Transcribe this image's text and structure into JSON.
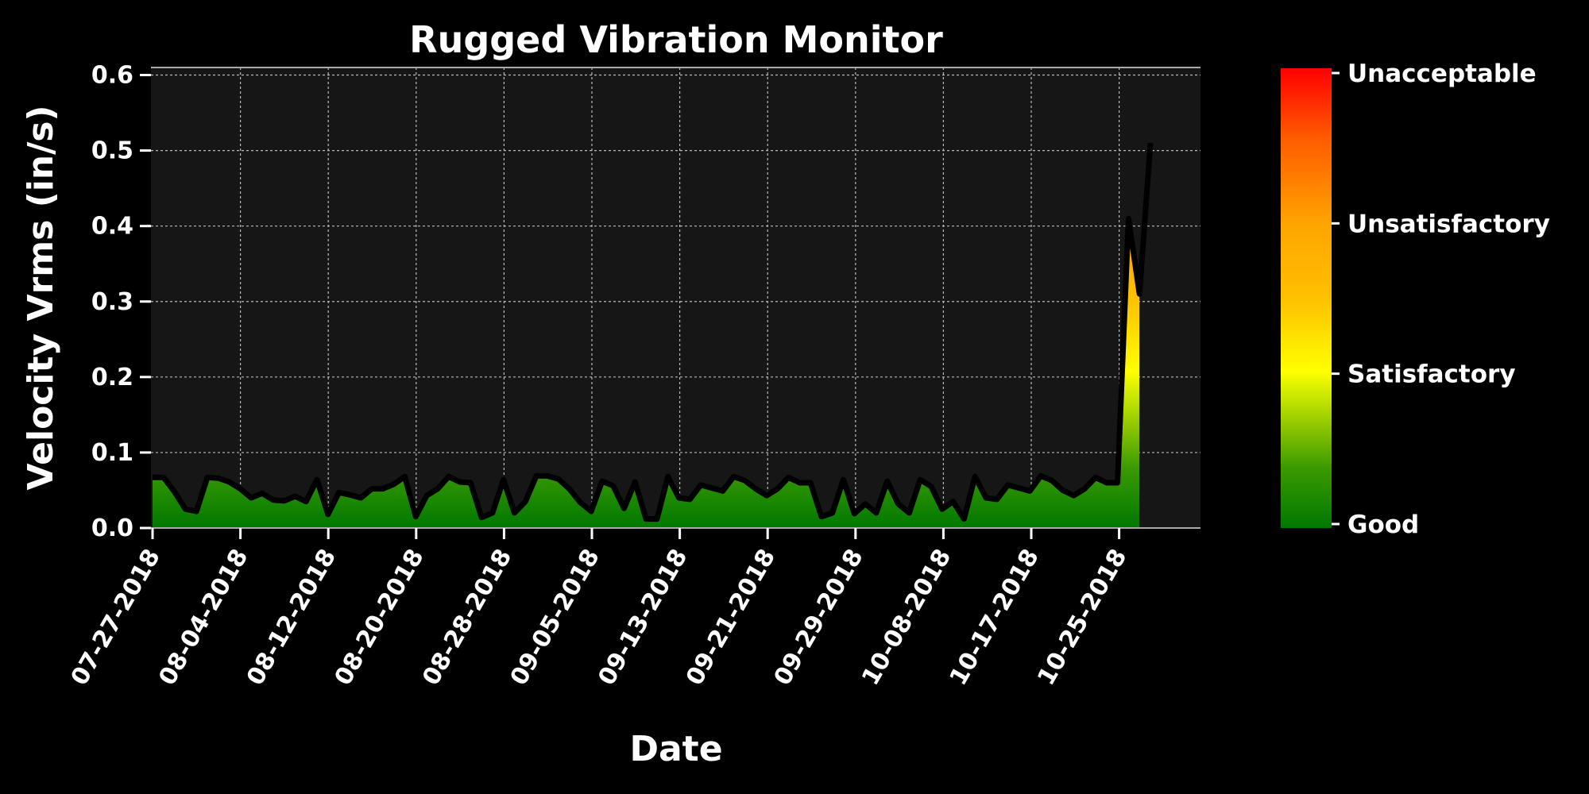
{
  "chart_data": {
    "type": "area",
    "title": "Rugged Vibration Monitor",
    "xlabel": "Date",
    "ylabel": "Velocity Vrms (in/s)",
    "ylim": [
      0,
      0.61
    ],
    "yticks": [
      "0.0",
      "0.1",
      "0.2",
      "0.3",
      "0.4",
      "0.5",
      "0.6"
    ],
    "xticks": [
      "07-27-2018",
      "08-04-2018",
      "08-12-2018",
      "08-20-2018",
      "08-28-2018",
      "09-05-2018",
      "09-13-2018",
      "09-21-2018",
      "09-29-2018",
      "10-08-2018",
      "10-17-2018",
      "10-25-2018"
    ],
    "grid": true,
    "series": [
      {
        "values": [
          0.067,
          0.067,
          0.048,
          0.025,
          0.022,
          0.067,
          0.066,
          0.061,
          0.052,
          0.04,
          0.046,
          0.037,
          0.036,
          0.042,
          0.035,
          0.064,
          0.018,
          0.047,
          0.044,
          0.04,
          0.052,
          0.052,
          0.058,
          0.068,
          0.015,
          0.043,
          0.052,
          0.068,
          0.061,
          0.06,
          0.014,
          0.02,
          0.064,
          0.02,
          0.035,
          0.069,
          0.069,
          0.065,
          0.052,
          0.034,
          0.022,
          0.062,
          0.056,
          0.026,
          0.061,
          0.012,
          0.012,
          0.068,
          0.04,
          0.038,
          0.057,
          0.053,
          0.049,
          0.068,
          0.063,
          0.052,
          0.043,
          0.052,
          0.067,
          0.06,
          0.06,
          0.015,
          0.02,
          0.064,
          0.019,
          0.032,
          0.02,
          0.062,
          0.032,
          0.02,
          0.064,
          0.055,
          0.025,
          0.035,
          0.012,
          0.068,
          0.04,
          0.038,
          0.057,
          0.053,
          0.049,
          0.069,
          0.063,
          0.05,
          0.043,
          0.052,
          0.067,
          0.06,
          0.06,
          0.41,
          0.31,
          0.51
        ]
      }
    ],
    "colorbar": {
      "labels": [
        "Good",
        "Satisfactory",
        "Unsatisfactory",
        "Unacceptable"
      ],
      "colors": [
        "#008000",
        "#ffff00",
        "#ffa500",
        "#ff0000"
      ]
    },
    "colors": {
      "background": "#000000",
      "plot_background": "#161616",
      "line": "#000000",
      "grid": "#bbbbbb"
    }
  }
}
